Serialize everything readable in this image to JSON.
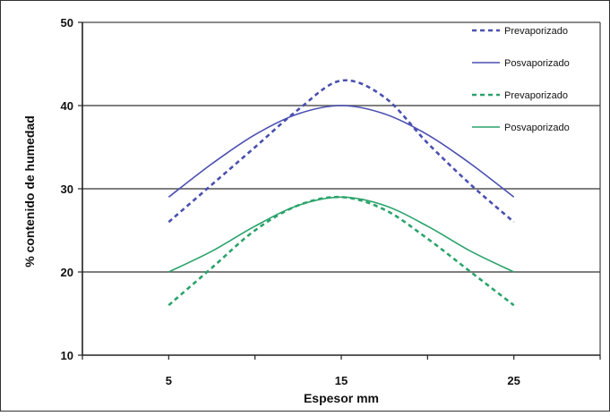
{
  "chart_data": {
    "type": "line",
    "title": "",
    "xlabel": "Espesor  mm",
    "ylabel": "% contenido de humedad",
    "x_tick_labels": [
      "5",
      "15",
      "25"
    ],
    "x_tick_values": [
      5,
      15,
      25
    ],
    "y_tick_labels": [
      "10",
      "20",
      "30",
      "40",
      "50"
    ],
    "y_tick_values": [
      10,
      20,
      30,
      40,
      50
    ],
    "xlim": [
      0,
      30
    ],
    "ylim": [
      10,
      50
    ],
    "grid": "horizontal major gridlines",
    "legend_position": "top-right",
    "series": [
      {
        "name": "Prevaporizado",
        "color": "#4a4fb0",
        "dash": "dashed",
        "x": [
          5,
          7.5,
          10,
          12.5,
          15,
          17.5,
          20,
          22.5,
          25
        ],
        "y": [
          26,
          30.5,
          35,
          39.5,
          43,
          41,
          35.5,
          30.5,
          26
        ]
      },
      {
        "name": "Posvaporizado",
        "color": "#4a4fb0",
        "dash": "solid",
        "x": [
          5,
          7.5,
          10,
          12.5,
          15,
          17.5,
          20,
          22.5,
          25
        ],
        "y": [
          29,
          33,
          36.5,
          39,
          40,
          39,
          36.5,
          33,
          29
        ]
      },
      {
        "name": "Prevaporizado",
        "color": "#2aa36b",
        "dash": "dashed",
        "x": [
          5,
          7.5,
          10,
          12.5,
          15,
          17.5,
          20,
          22.5,
          25
        ],
        "y": [
          16,
          20.5,
          25,
          28,
          29,
          27.5,
          24,
          20,
          16
        ]
      },
      {
        "name": "Posvaporizado",
        "color": "#2aa36b",
        "dash": "solid",
        "x": [
          5,
          7.5,
          10,
          12.5,
          15,
          17.5,
          20,
          22.5,
          25
        ],
        "y": [
          20,
          22.5,
          25.5,
          28,
          29,
          28,
          25.5,
          22.5,
          20
        ]
      }
    ]
  }
}
